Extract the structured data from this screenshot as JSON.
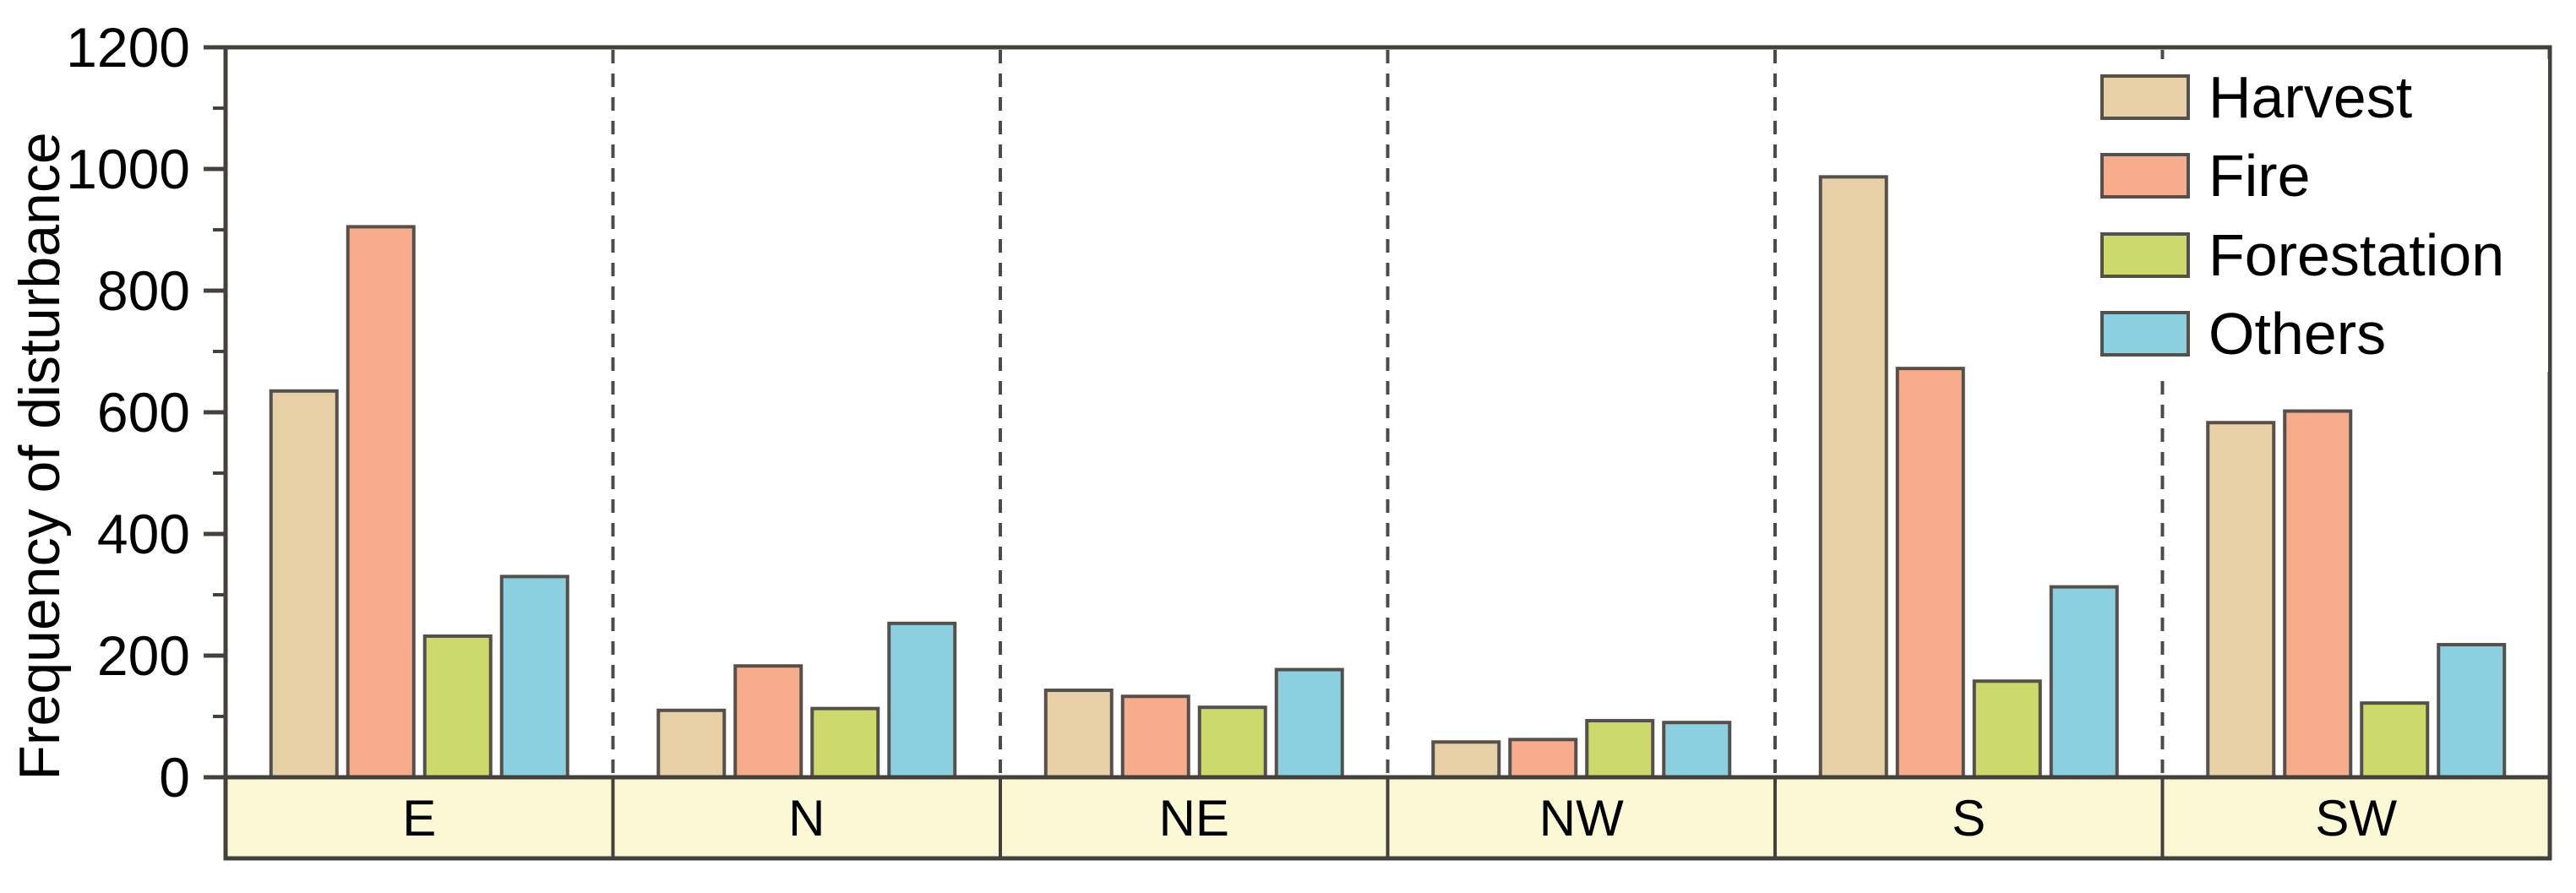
{
  "chart_data": {
    "type": "bar",
    "title": "",
    "xlabel": "",
    "ylabel": "Frequency of disturbance",
    "categories": [
      "E",
      "N",
      "NE",
      "NW",
      "S",
      "SW"
    ],
    "series": [
      {
        "name": "Harvest",
        "color": "#e7cfa6",
        "values": [
          635,
          110,
          143,
          58,
          987,
          583
        ]
      },
      {
        "name": "Fire",
        "color": "#f7ad8c",
        "values": [
          905,
          183,
          133,
          62,
          672,
          602
        ]
      },
      {
        "name": "Forestation",
        "color": "#ccda6b",
        "values": [
          232,
          113,
          115,
          93,
          158,
          122
        ]
      },
      {
        "name": "Others",
        "color": "#8ad0e0",
        "values": [
          330,
          253,
          177,
          90,
          313,
          218
        ]
      }
    ],
    "ylim": [
      0,
      1200
    ],
    "yticks_major": [
      0,
      200,
      400,
      600,
      800,
      1000,
      1200
    ],
    "yticks_minor": [
      100,
      300,
      500,
      700,
      900,
      1100
    ],
    "grid": false,
    "legend_position": "top-right",
    "group_separator_style": "dashed",
    "band_color": "#faf8d5",
    "bar_outline_color": "#55504a",
    "axis_color": "#44413d",
    "separator_color": "#4b4b49"
  }
}
